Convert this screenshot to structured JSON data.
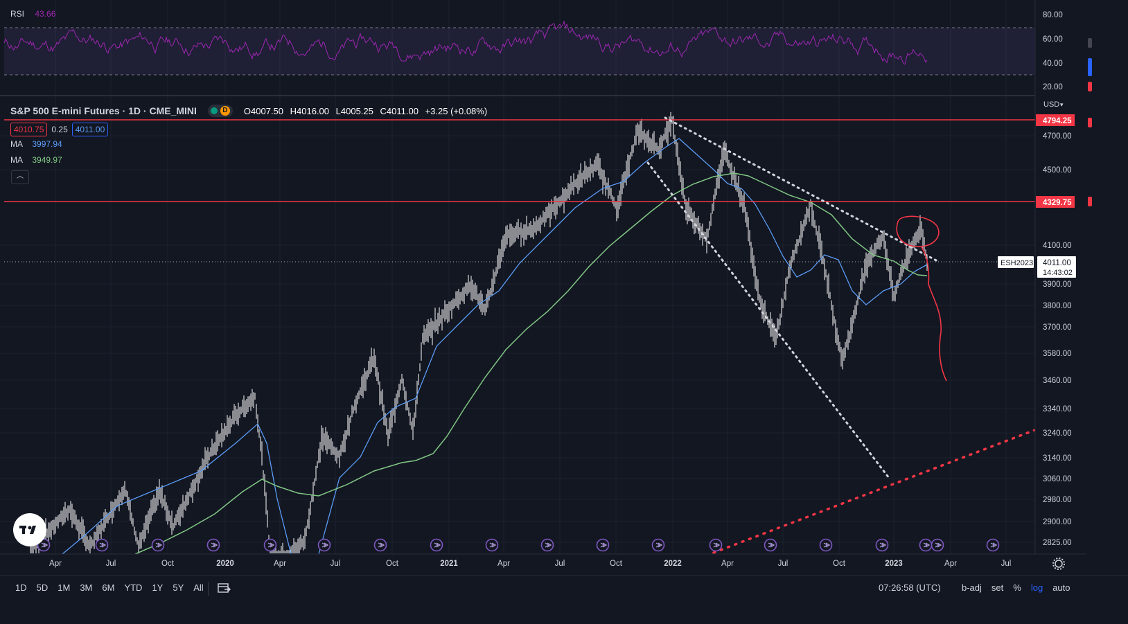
{
  "symbol": {
    "title": "S&P 500 E-mini Futures · 1D · CME_MINI",
    "badge": "D",
    "open": "O4007.50",
    "high": "H4016.00",
    "low": "L4005.25",
    "close": "C4011.00",
    "change": "+3.25 (+0.08%)"
  },
  "quote": {
    "sell": "4010.75",
    "spread": "0.25",
    "buy": "4011.00"
  },
  "ma": [
    {
      "label": "MA",
      "value": "3997.94",
      "color": "#5b9cf6"
    },
    {
      "label": "MA",
      "value": "3949.97",
      "color": "#81c784"
    }
  ],
  "rsi": {
    "label": "RSI",
    "value": "43.66",
    "axis": [
      "80.00",
      "60.00",
      "40.00",
      "20.00"
    ]
  },
  "price_axis": {
    "currency": "USD",
    "ticks": [
      "4700.00",
      "4500.00",
      "4100.00",
      "3900.00",
      "3800.00",
      "3700.00",
      "3580.00",
      "3460.00",
      "3340.00",
      "3240.00",
      "3140.00",
      "3060.00",
      "2980.00",
      "2900.00",
      "2825.00"
    ],
    "level_1": "4794.25",
    "level_2": "4329.75",
    "last_price": "4011.00",
    "countdown": "14:43:02",
    "ticker_tag": "ESH2023"
  },
  "time_axis": [
    "Apr",
    "Jul",
    "Oct",
    "2020",
    "Apr",
    "Jul",
    "Oct",
    "2021",
    "Apr",
    "Jul",
    "Oct",
    "2022",
    "Apr",
    "Jul",
    "Oct",
    "2023",
    "Apr",
    "Jul"
  ],
  "bottom_bar": {
    "ranges": [
      "1D",
      "5D",
      "1M",
      "3M",
      "6M",
      "YTD",
      "1Y",
      "5Y",
      "All"
    ],
    "clock": "07:26:58 (UTC)",
    "options": [
      "b-adj",
      "set",
      "%",
      "log",
      "auto"
    ],
    "active_option": "log"
  },
  "colors": {
    "background": "#131722",
    "candles": "#ffffff",
    "ma_fast": "#5b9cf6",
    "ma_slow": "#81c784",
    "rsi": "#9c27b0",
    "levels": "#f23645"
  },
  "icons": [
    "tradingview-logo-icon",
    "event-marker-icon",
    "goto-date-icon",
    "settings-gear-icon"
  ]
}
